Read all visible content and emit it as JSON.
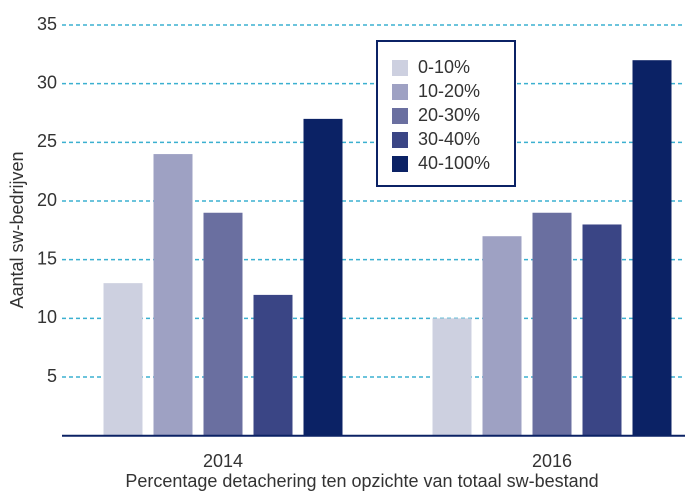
{
  "chart_data": {
    "type": "bar",
    "x_label": "Percentage detachering ten opzichte van totaal sw-bestand",
    "y_label": "Aantal sw-bedrijven",
    "categories": [
      "2014",
      "2016"
    ],
    "series": [
      {
        "name": "0-10%",
        "color": "#cdd0e0",
        "values": [
          13,
          10
        ]
      },
      {
        "name": "10-20%",
        "color": "#9ea1c3",
        "values": [
          24,
          17
        ]
      },
      {
        "name": "20-30%",
        "color": "#6a6fa0",
        "values": [
          19,
          19
        ]
      },
      {
        "name": "30-40%",
        "color": "#3a4585",
        "values": [
          12,
          18
        ]
      },
      {
        "name": "40-100%",
        "color": "#0b2265",
        "values": [
          27,
          32
        ]
      }
    ],
    "ylim": [
      0,
      35
    ],
    "yticks": [
      5,
      10,
      15,
      20,
      25,
      30,
      35
    ],
    "grid": true,
    "legend": "top"
  }
}
